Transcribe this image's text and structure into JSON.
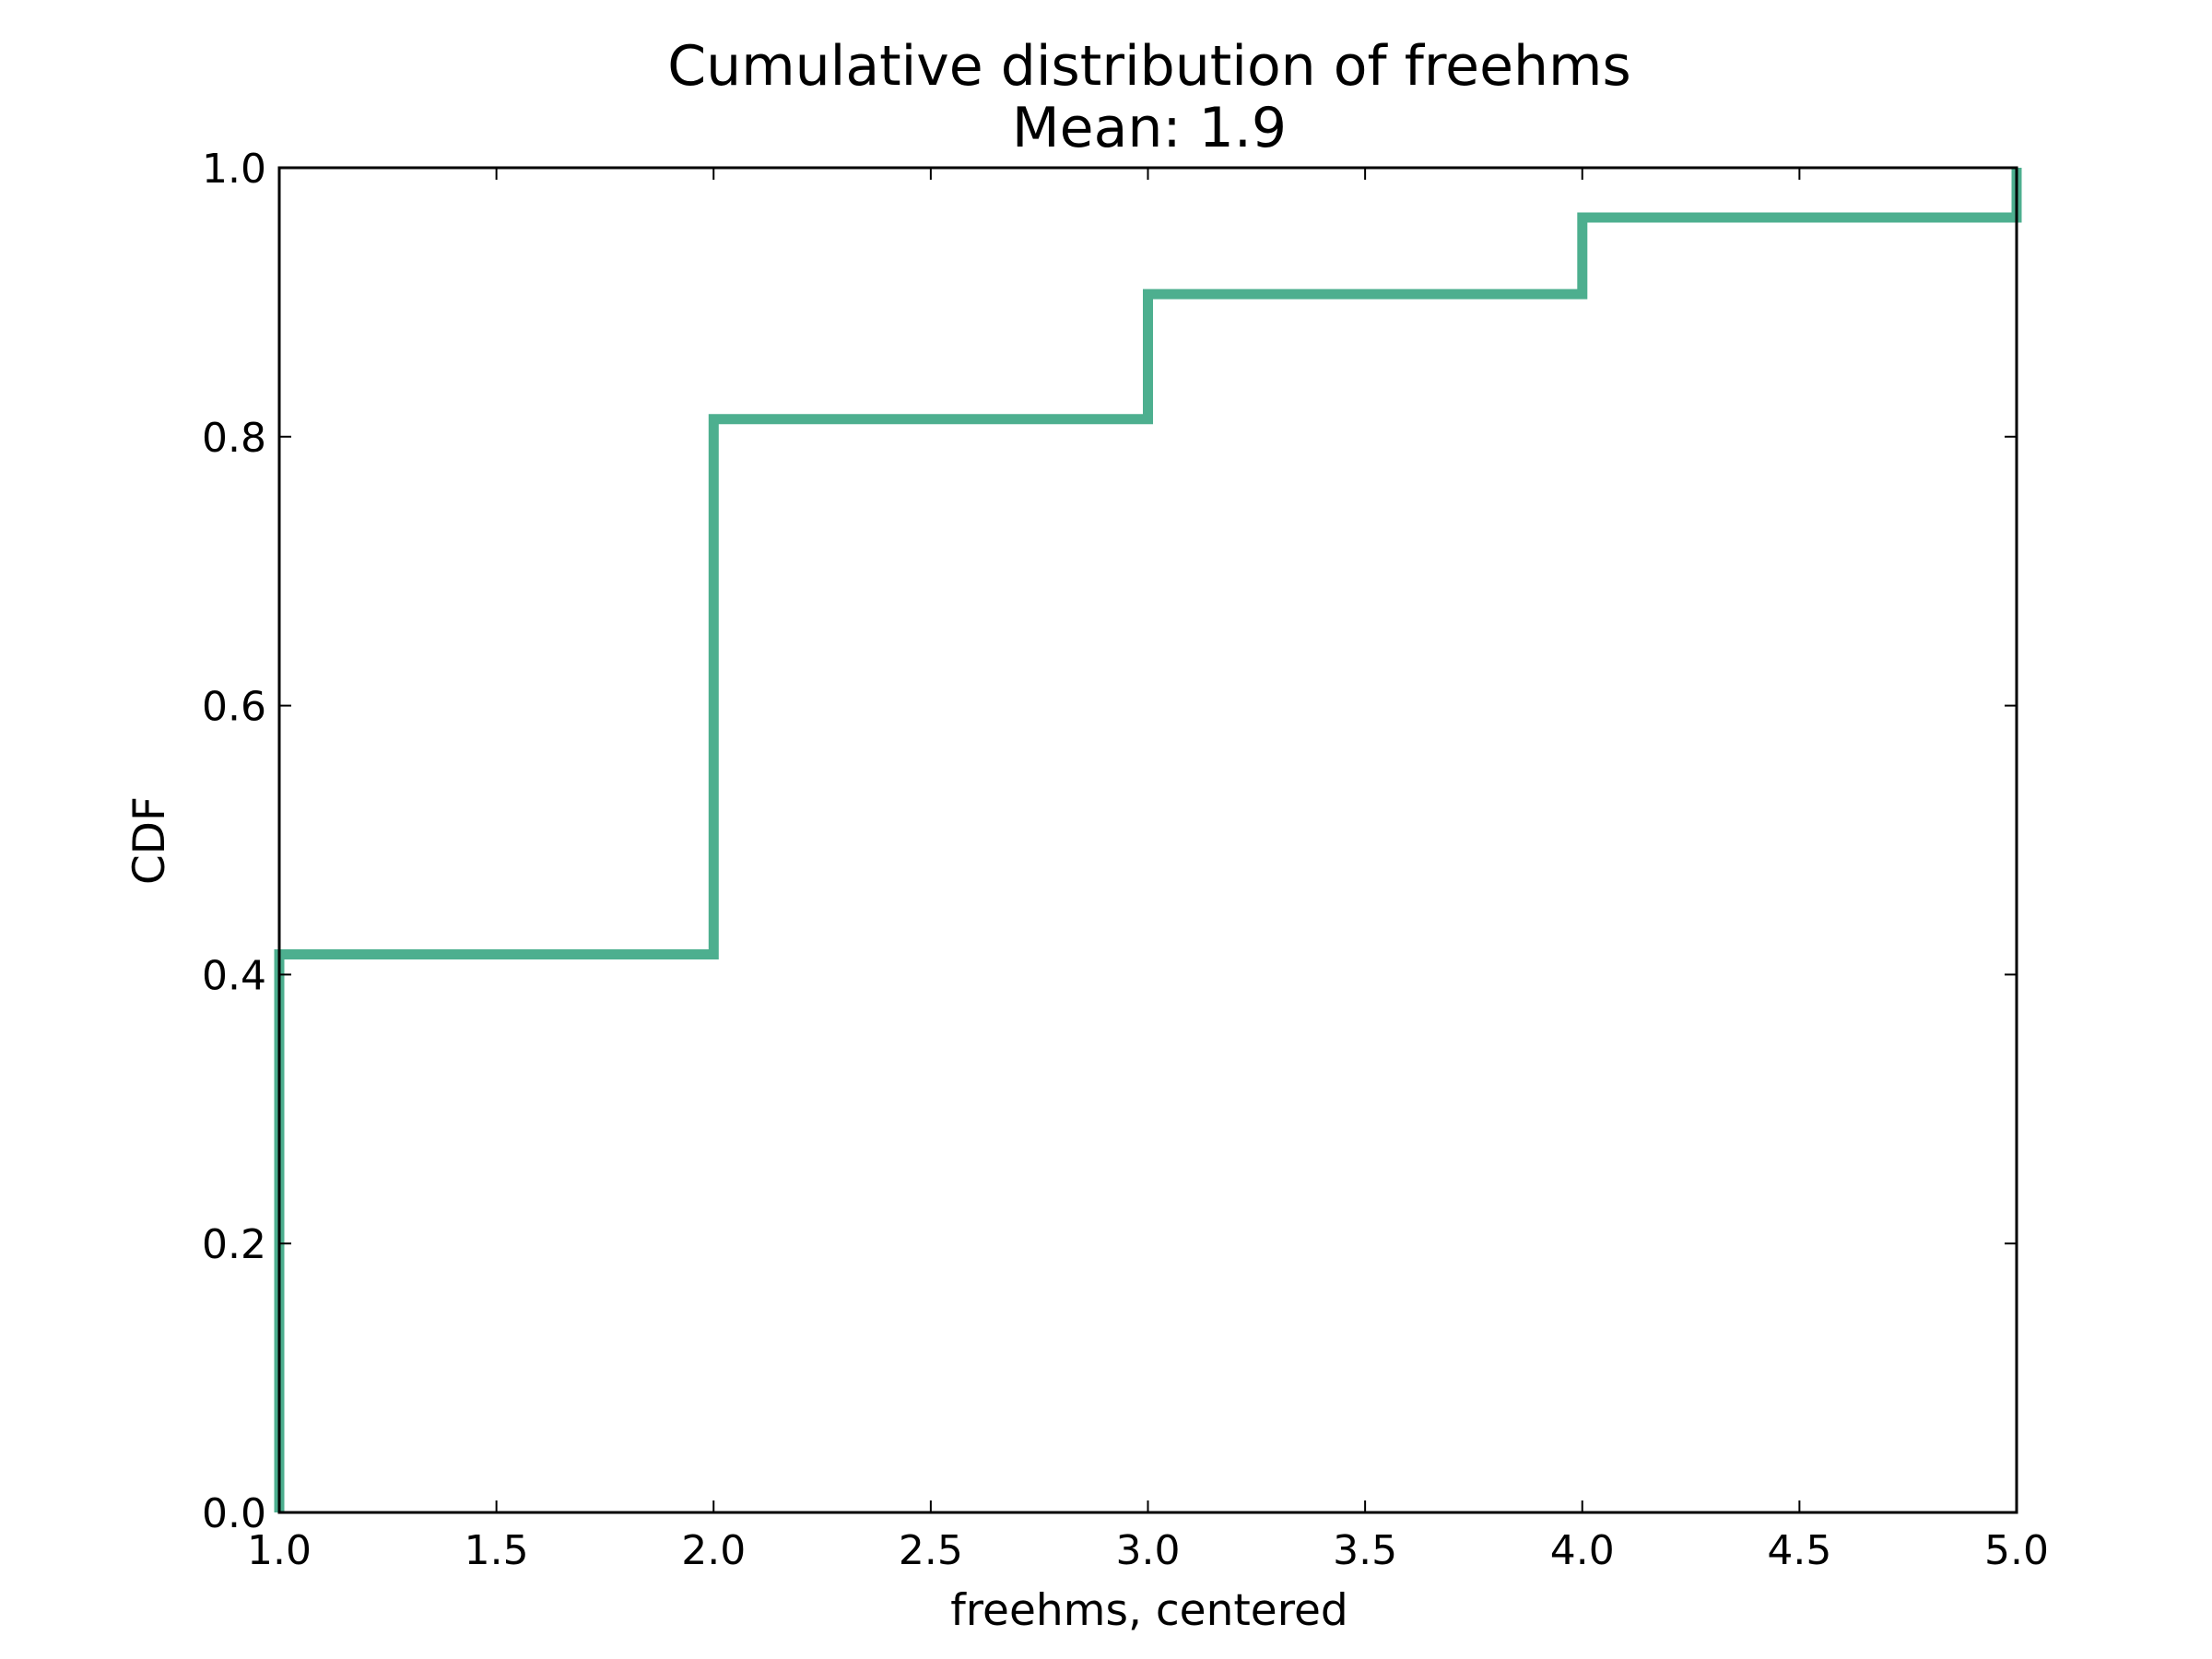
{
  "chart_data": {
    "type": "line",
    "drawstyle": "steps-post",
    "title": "Cumulative distribution of freehms",
    "subtitle": "Mean: 1.9",
    "xlabel": "freehms, centered",
    "ylabel": "CDF",
    "xlim": [
      1.0,
      5.0
    ],
    "ylim": [
      0.0,
      1.0
    ],
    "xticks": [
      "1.0",
      "1.5",
      "2.0",
      "2.5",
      "3.0",
      "3.5",
      "4.0",
      "4.5",
      "5.0"
    ],
    "yticks": [
      "0.0",
      "0.2",
      "0.4",
      "0.6",
      "0.8",
      "1.0"
    ],
    "grid": false,
    "color": "#4daf8f",
    "series": [
      {
        "x": [
          1.0,
          1.0,
          2.0,
          2.0,
          3.0,
          3.0,
          4.0,
          4.0,
          5.0,
          5.0
        ],
        "y": [
          0.0,
          0.415,
          0.415,
          0.813,
          0.813,
          0.906,
          0.906,
          0.963,
          0.963,
          1.0
        ]
      }
    ]
  }
}
